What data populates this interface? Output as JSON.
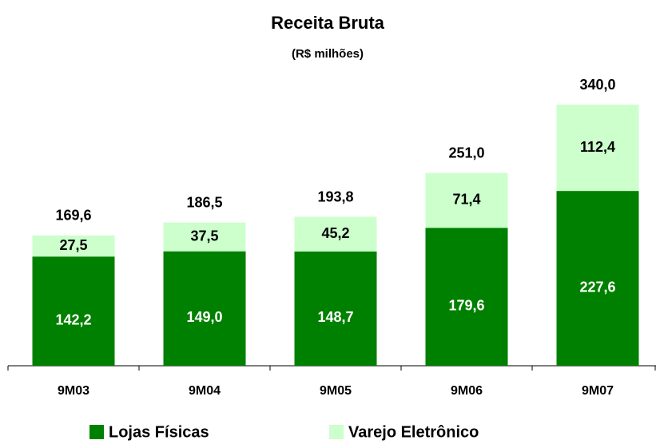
{
  "chart_data": {
    "type": "stacked-bar",
    "title": "Receita Bruta",
    "subtitle": "(R$ milhões)",
    "categories": [
      "9M03",
      "9M04",
      "9M05",
      "9M06",
      "9M07"
    ],
    "series": [
      {
        "name": "Lojas Físicas",
        "color": "#008000",
        "values": [
          142.2,
          149.0,
          148.7,
          179.6,
          227.6
        ],
        "value_labels": [
          "142,2",
          "149,0",
          "148,7",
          "179,6",
          "227,6"
        ]
      },
      {
        "name": "Varejo Eletrônico",
        "color": "#ccffcc",
        "values": [
          27.5,
          37.5,
          45.2,
          71.4,
          112.4
        ],
        "value_labels": [
          "27,5",
          "37,5",
          "45,2",
          "71,4",
          "112,4"
        ]
      }
    ],
    "totals": [
      169.6,
      186.5,
      193.8,
      251.0,
      340.0
    ],
    "total_labels": [
      "169,6",
      "186,5",
      "193,8",
      "251,0",
      "340,0"
    ]
  }
}
